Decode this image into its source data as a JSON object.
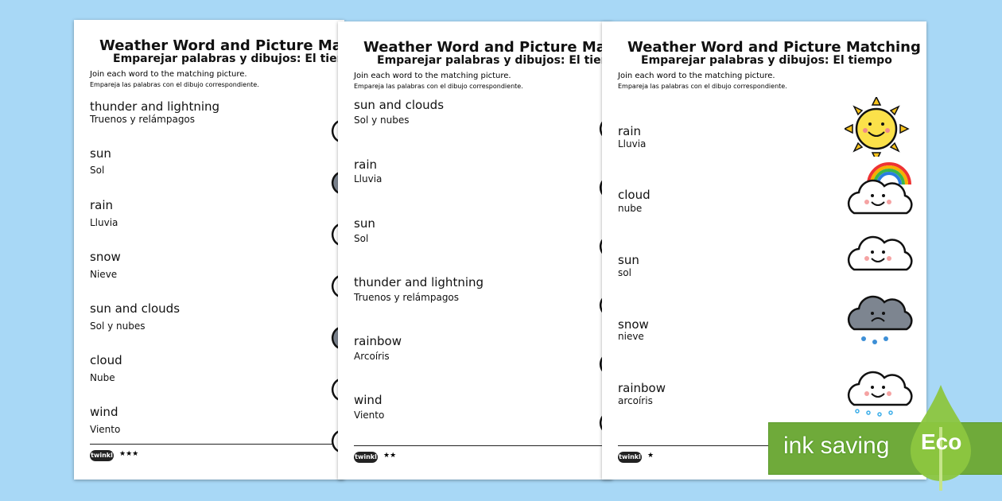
{
  "sheets": [
    {
      "title": "Weather Word and Picture Matching",
      "subtitle": "Emparejar palabras y dibujos: El tiempo",
      "instruction": "Join each word to the matching picture.",
      "instruction_es": "Empareja las palabras con el dibujo correspondiente.",
      "items": [
        {
          "word": "thunder and lightning",
          "es": "Truenos y relámpagos"
        },
        {
          "word": "sun",
          "es": "Sol"
        },
        {
          "word": "rain",
          "es": "Lluvia"
        },
        {
          "word": "snow",
          "es": "Nieve"
        },
        {
          "word": "sun and clouds",
          "es": "Sol y nubes"
        },
        {
          "word": "cloud",
          "es": "Nube"
        },
        {
          "word": "wind",
          "es": "Viento"
        }
      ],
      "logo": "twinkl",
      "stars": "★★★"
    },
    {
      "title": "Weather Word and Picture Matching",
      "subtitle": "Emparejar palabras y dibujos: El tiempo",
      "instruction": "Join each word to the matching picture.",
      "instruction_es": "Empareja las palabras con el dibujo correspondiente.",
      "items": [
        {
          "word": "sun and clouds",
          "es": "Sol y nubes"
        },
        {
          "word": "rain",
          "es": "Lluvia"
        },
        {
          "word": "sun",
          "es": "Sol"
        },
        {
          "word": "thunder and lightning",
          "es": "Truenos y relámpagos"
        },
        {
          "word": "rainbow",
          "es": "Arcoíris"
        },
        {
          "word": "wind",
          "es": "Viento"
        }
      ],
      "logo": "twinkl",
      "stars": "★★"
    },
    {
      "title": "Weather Word and Picture Matching",
      "subtitle": "Emparejar palabras y dibujos: El tiempo",
      "instruction": "Join each word to the matching picture.",
      "instruction_es": "Empareja las palabras con el dibujo correspondiente.",
      "items": [
        {
          "word": "rain",
          "es": "Lluvia"
        },
        {
          "word": "cloud",
          "es": "nube"
        },
        {
          "word": "sun",
          "es": "sol"
        },
        {
          "word": "snow",
          "es": "nieve"
        },
        {
          "word": "rainbow",
          "es": "arcoíris"
        }
      ],
      "pictures": [
        "sun-icon",
        "rainbow-cloud-icon",
        "cloud-icon",
        "rain-cloud-icon",
        "snow-cloud-icon"
      ],
      "logo": "twinkl",
      "stars": "★"
    }
  ],
  "badge": {
    "text": "ink saving",
    "label": "Eco",
    "color": "#6faa3a"
  }
}
